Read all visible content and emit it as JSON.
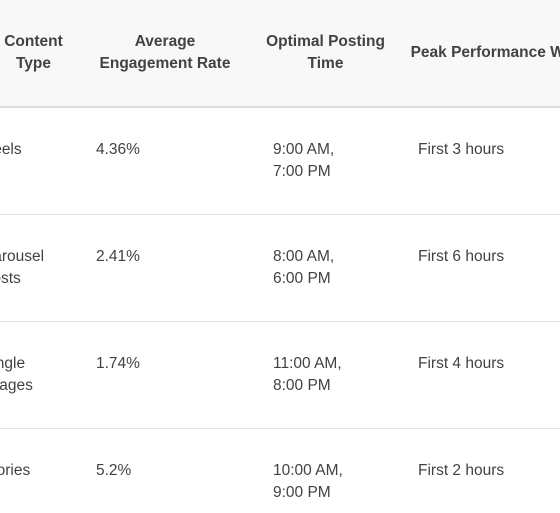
{
  "table": {
    "headers": [
      "Content Type",
      "Average Engagement Rate",
      "Optimal Posting Time",
      "Peak Performance Window"
    ],
    "rows": [
      {
        "content_type": "Reels",
        "engagement_rate": "4.36%",
        "posting_time": "9:00 AM, 7:00 PM",
        "peak_window": "First 3 hours"
      },
      {
        "content_type": "Carousel Posts",
        "engagement_rate": "2.41%",
        "posting_time": "8:00 AM, 6:00 PM",
        "peak_window": "First 6 hours"
      },
      {
        "content_type": "Single Images",
        "engagement_rate": "1.74%",
        "posting_time": "11:00 AM, 8:00 PM",
        "peak_window": "First 4 hours"
      },
      {
        "content_type": "Stories",
        "engagement_rate": "5.2%",
        "posting_time": "10:00 AM, 9:00 PM",
        "peak_window": "First 2 hours"
      }
    ]
  }
}
